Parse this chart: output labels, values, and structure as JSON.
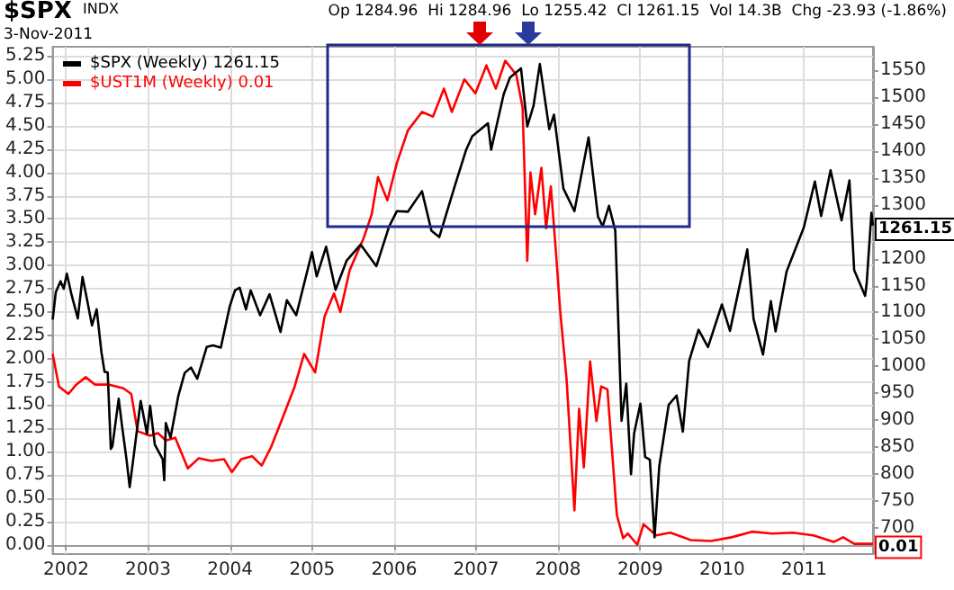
{
  "chart_data": {
    "type": "line",
    "title": "$SPX",
    "subtitle": "INDX",
    "annotations": [
      "3-Nov-2011",
      "Op 1284.96  Hi 1284.96  Lo 1255.42  Cl 1261.15  Vol 14.3B  Chg -23.93 (-1.86%)"
    ],
    "xlim": [
      "2001-11-02",
      "2011-11-04"
    ],
    "xticks": [
      "2002",
      "2003",
      "2004",
      "2005",
      "2006",
      "2007",
      "2008",
      "2009",
      "2010",
      "2011"
    ],
    "ylim": [
      -0.1,
      5.35
    ],
    "yticks": [
      {
        "value": 0,
        "label": "0.00"
      },
      {
        "value": 0.25,
        "label": "0.25"
      },
      {
        "value": 0.5,
        "label": "0.50"
      },
      {
        "value": 0.75,
        "label": "0.75"
      },
      {
        "value": 1,
        "label": "1.00"
      },
      {
        "value": 1.25,
        "label": "1.25"
      },
      {
        "value": 1.5,
        "label": "1.50"
      },
      {
        "value": 1.75,
        "label": "1.75"
      },
      {
        "value": 2,
        "label": "2.00"
      },
      {
        "value": 2.25,
        "label": "2.25"
      },
      {
        "value": 2.5,
        "label": "2.50"
      },
      {
        "value": 2.75,
        "label": "2.75"
      },
      {
        "value": 3,
        "label": "3.00"
      },
      {
        "value": 3.25,
        "label": "3.25"
      },
      {
        "value": 3.5,
        "label": "3.50"
      },
      {
        "value": 3.75,
        "label": "3.75"
      },
      {
        "value": 4,
        "label": "4.00"
      },
      {
        "value": 4.25,
        "label": "4.25"
      },
      {
        "value": 4.5,
        "label": "4.50"
      },
      {
        "value": 4.75,
        "label": "4.75"
      },
      {
        "value": 5,
        "label": "5.00"
      },
      {
        "value": 5.25,
        "label": "5.25"
      }
    ],
    "y2lim": [
      652,
      1593
    ],
    "y2ticks": [
      700,
      750,
      800,
      850,
      900,
      950,
      1000,
      1050,
      1100,
      1150,
      1200,
      {
        "value": 1250,
        "label": null
      },
      1300,
      1350,
      1400,
      1450,
      1500,
      1550
    ],
    "grid": true,
    "legend": "top left",
    "series": [
      {
        "name": "$SPX (Weekly) 1261.15",
        "color": "#000000",
        "axis": "y2",
        "x": [
          "2001-11-02",
          "2001-11-16",
          "2001-12-07",
          "2001-12-21",
          "2002-01-04",
          "2002-01-25",
          "2002-02-22",
          "2002-03-15",
          "2002-04-05",
          "2002-04-26",
          "2002-05-17",
          "2002-06-07",
          "2002-06-21",
          "2002-07-05",
          "2002-07-19",
          "2002-07-26",
          "2002-08-23",
          "2002-09-06",
          "2002-09-27",
          "2002-10-11",
          "2002-11-29",
          "2002-12-27",
          "2003-01-10",
          "2003-01-31",
          "2003-03-07",
          "2003-03-14",
          "2003-03-21",
          "2003-04-11",
          "2003-05-16",
          "2003-06-13",
          "2003-07-11",
          "2003-08-08",
          "2003-09-19",
          "2003-10-17",
          "2003-11-21",
          "2003-12-31",
          "2004-01-23",
          "2004-02-13",
          "2004-03-12",
          "2004-04-02",
          "2004-05-14",
          "2004-06-25",
          "2004-08-13",
          "2004-09-10",
          "2004-10-22",
          "2004-12-31",
          "2005-01-21",
          "2005-03-04",
          "2005-04-15",
          "2005-06-03",
          "2005-08-05",
          "2005-10-14",
          "2005-12-09",
          "2006-01-13",
          "2006-03-03",
          "2006-05-05",
          "2006-06-16",
          "2006-07-21",
          "2006-09-29",
          "2006-11-17",
          "2006-12-15",
          "2007-02-23",
          "2007-03-09",
          "2007-05-04",
          "2007-06-01",
          "2007-07-20",
          "2007-08-17",
          "2007-09-14",
          "2007-10-12",
          "2007-11-23",
          "2007-12-14",
          "2008-01-25",
          "2008-03-14",
          "2008-05-16",
          "2008-06-27",
          "2008-07-18",
          "2008-08-15",
          "2008-09-12",
          "2008-10-10",
          "2008-10-31",
          "2008-11-21",
          "2008-12-05",
          "2009-01-02",
          "2009-01-23",
          "2009-02-13",
          "2009-03-06",
          "2009-03-27",
          "2009-05-08",
          "2009-06-12",
          "2009-07-10",
          "2009-08-07",
          "2009-09-18",
          "2009-10-30",
          "2009-12-31",
          "2010-02-05",
          "2010-04-23",
          "2010-05-21",
          "2010-07-02",
          "2010-08-06",
          "2010-08-27",
          "2010-10-15",
          "2010-12-31",
          "2011-02-18",
          "2011-03-18",
          "2011-04-29",
          "2011-06-17",
          "2011-07-22",
          "2011-08-12",
          "2011-09-30",
          "2011-10-07",
          "2011-10-28",
          "2011-11-04"
        ],
        "values": [
          1087,
          1138,
          1158,
          1144,
          1172,
          1133,
          1089,
          1166,
          1122,
          1076,
          1106,
          1027,
          990,
          989,
          847,
          852,
          940,
          893,
          827,
          776,
          936,
          875,
          927,
          855,
          828,
          789,
          895,
          868,
          946,
          988,
          998,
          977,
          1036,
          1039,
          1035,
          1112,
          1141,
          1146,
          1106,
          1141,
          1095,
          1134,
          1064,
          1123,
          1095,
          1212,
          1167,
          1222,
          1142,
          1196,
          1226,
          1186,
          1259,
          1288,
          1287,
          1325,
          1252,
          1240,
          1336,
          1401,
          1427,
          1451,
          1402,
          1505,
          1536,
          1553,
          1445,
          1484,
          1561,
          1440,
          1467,
          1330,
          1288,
          1425,
          1278,
          1260,
          1298,
          1252,
          899,
          968,
          800,
          876,
          931,
          832,
          827,
          683,
          815,
          929,
          946,
          879,
          1010,
          1068,
          1036,
          1115,
          1066,
          1217,
          1088,
          1022,
          1121,
          1065,
          1176,
          1258,
          1343,
          1279,
          1364,
          1271,
          1345,
          1179,
          1131,
          1155,
          1285,
          1261.15
        ],
        "value_labels": [
          null,
          null,
          null,
          null,
          null,
          null,
          null,
          null,
          null,
          null,
          null,
          null,
          null,
          null,
          null,
          null,
          null,
          null,
          null,
          null,
          null,
          null,
          null,
          null,
          null,
          null,
          null,
          null,
          null,
          null,
          null,
          null,
          null,
          null,
          null,
          null,
          null,
          null,
          null,
          null,
          null,
          null,
          null,
          null,
          null,
          null,
          null,
          null,
          null,
          null,
          null,
          null,
          null,
          null,
          null,
          null,
          null,
          null,
          null,
          null,
          null,
          null,
          null,
          null,
          null,
          null,
          null,
          null,
          null,
          null,
          null,
          null,
          null,
          null,
          null,
          null,
          null,
          null,
          null,
          null,
          null,
          null,
          null,
          null,
          null,
          null,
          null,
          null,
          null,
          null,
          null,
          null,
          null,
          null,
          null,
          null,
          null,
          null,
          null,
          null,
          null,
          null,
          null,
          null,
          null,
          null,
          null,
          null,
          null,
          null,
          null,
          "1261.15"
        ]
      },
      {
        "name": "$UST1M (Weekly) 0.01",
        "color": "#ff0000",
        "x": [
          "2001-11-02",
          "2001-11-30",
          "2002-01-11",
          "2002-02-15",
          "2002-03-29",
          "2002-05-10",
          "2002-07-12",
          "2002-09-13",
          "2002-10-18",
          "2002-11-15",
          "2003-01-10",
          "2003-02-14",
          "2003-03-21",
          "2003-05-02",
          "2003-06-27",
          "2003-08-15",
          "2003-10-10",
          "2003-12-05",
          "2004-01-09",
          "2004-02-20",
          "2004-04-09",
          "2004-05-21",
          "2004-07-02",
          "2004-08-20",
          "2004-10-15",
          "2004-11-26",
          "2005-01-14",
          "2005-02-25",
          "2005-04-08",
          "2005-05-06",
          "2005-06-17",
          "2005-08-19",
          "2005-09-23",
          "2005-10-21",
          "2005-12-02",
          "2006-01-13",
          "2006-03-03",
          "2006-05-05",
          "2006-06-23",
          "2006-08-11",
          "2006-09-15",
          "2006-11-10",
          "2006-12-29",
          "2007-02-16",
          "2007-03-30",
          "2007-05-11",
          "2007-06-29",
          "2007-07-27",
          "2007-08-17",
          "2007-08-31",
          "2007-09-21",
          "2007-10-19",
          "2007-11-09",
          "2007-11-30",
          "2007-12-21",
          "2008-01-11",
          "2008-02-08",
          "2008-03-14",
          "2008-04-04",
          "2008-04-25",
          "2008-05-23",
          "2008-06-20",
          "2008-07-11",
          "2008-08-08",
          "2008-09-19",
          "2008-10-17",
          "2008-11-07",
          "2008-12-19",
          "2009-01-16",
          "2009-03-13",
          "2009-05-15",
          "2009-08-14",
          "2009-11-13",
          "2010-02-12",
          "2010-05-14",
          "2010-08-13",
          "2010-11-12",
          "2011-02-11",
          "2011-05-13",
          "2011-06-24",
          "2011-08-12",
          "2011-09-30",
          "2011-11-04"
        ],
        "values": [
          2.05,
          1.7,
          1.62,
          1.72,
          1.8,
          1.72,
          1.72,
          1.68,
          1.62,
          1.22,
          1.17,
          1.2,
          1.12,
          1.15,
          0.82,
          0.93,
          0.9,
          0.92,
          0.78,
          0.92,
          0.95,
          0.85,
          1.05,
          1.35,
          1.7,
          2.05,
          1.85,
          2.45,
          2.7,
          2.5,
          2.95,
          3.3,
          3.55,
          3.95,
          3.7,
          4.1,
          4.45,
          4.65,
          4.6,
          4.9,
          4.65,
          5.0,
          4.85,
          5.15,
          4.9,
          5.2,
          5.05,
          4.7,
          3.05,
          4.0,
          3.55,
          4.05,
          3.4,
          3.85,
          3.2,
          2.5,
          1.78,
          0.37,
          1.46,
          0.83,
          1.97,
          1.33,
          1.7,
          1.67,
          0.32,
          0.07,
          0.12,
          0.0,
          0.22,
          0.1,
          0.13,
          0.05,
          0.04,
          0.08,
          0.14,
          0.12,
          0.13,
          0.1,
          0.03,
          0.08,
          0.01,
          0.01,
          0.01
        ],
        "value_labels": [
          null,
          null,
          null,
          null,
          null,
          null,
          null,
          null,
          null,
          null,
          null,
          null,
          null,
          null,
          null,
          null,
          null,
          null,
          null,
          null,
          null,
          null,
          null,
          null,
          null,
          null,
          null,
          null,
          null,
          null,
          null,
          null,
          null,
          null,
          null,
          null,
          null,
          null,
          null,
          null,
          null,
          null,
          null,
          null,
          null,
          null,
          null,
          null,
          null,
          null,
          null,
          null,
          null,
          null,
          null,
          null,
          null,
          null,
          null,
          null,
          null,
          null,
          null,
          null,
          null,
          null,
          null,
          null,
          null,
          null,
          null,
          null,
          null,
          null,
          null,
          null,
          null,
          null,
          null,
          null,
          null,
          null,
          "0.01"
        ]
      }
    ]
  }
}
